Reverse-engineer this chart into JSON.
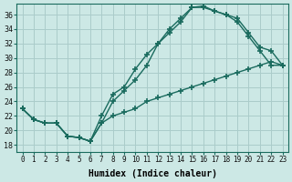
{
  "xlabel": "Humidex (Indice chaleur)",
  "xlim": [
    -0.5,
    23.5
  ],
  "ylim": [
    17,
    37.5
  ],
  "xticks": [
    0,
    1,
    2,
    3,
    4,
    5,
    6,
    7,
    8,
    9,
    10,
    11,
    12,
    13,
    14,
    15,
    16,
    17,
    18,
    19,
    20,
    21,
    22,
    23
  ],
  "yticks": [
    18,
    20,
    22,
    24,
    26,
    28,
    30,
    32,
    34,
    36
  ],
  "bg_color": "#cce8e5",
  "grid_color": "#aaccca",
  "line_color": "#1a6b5e",
  "line1_x": [
    0,
    1,
    2,
    3,
    4,
    5,
    6,
    7,
    8,
    9,
    10,
    11,
    12,
    13,
    14,
    15,
    16,
    17,
    18,
    19,
    20,
    21,
    22,
    23
  ],
  "line1_y": [
    23,
    21.5,
    21,
    21,
    19.2,
    19,
    18.5,
    22,
    25,
    26,
    28.5,
    30.5,
    32,
    34,
    35.5,
    37,
    37.2,
    36.5,
    36,
    35.5,
    33.5,
    31.5,
    31,
    29
  ],
  "line2_x": [
    0,
    1,
    2,
    3,
    4,
    5,
    6,
    7,
    8,
    9,
    10,
    11,
    12,
    13,
    14,
    15,
    16,
    17,
    18,
    19,
    20,
    21,
    22,
    23
  ],
  "line2_y": [
    23,
    21.5,
    21,
    21,
    19.2,
    19,
    18.5,
    21,
    24,
    25.5,
    27,
    29,
    32,
    33.5,
    35,
    37,
    37,
    36.5,
    36,
    35,
    33,
    31,
    29,
    29
  ],
  "line3_x": [
    0,
    1,
    2,
    3,
    4,
    5,
    6,
    7,
    8,
    9,
    10,
    11,
    12,
    13,
    14,
    15,
    16,
    17,
    18,
    19,
    20,
    21,
    22,
    23
  ],
  "line3_y": [
    23,
    21.5,
    21,
    21,
    19.2,
    19,
    18.5,
    21,
    22,
    22.5,
    23,
    24,
    24.5,
    25,
    25.5,
    26,
    26.5,
    27,
    27.5,
    28,
    28.5,
    29,
    29.5,
    29
  ]
}
